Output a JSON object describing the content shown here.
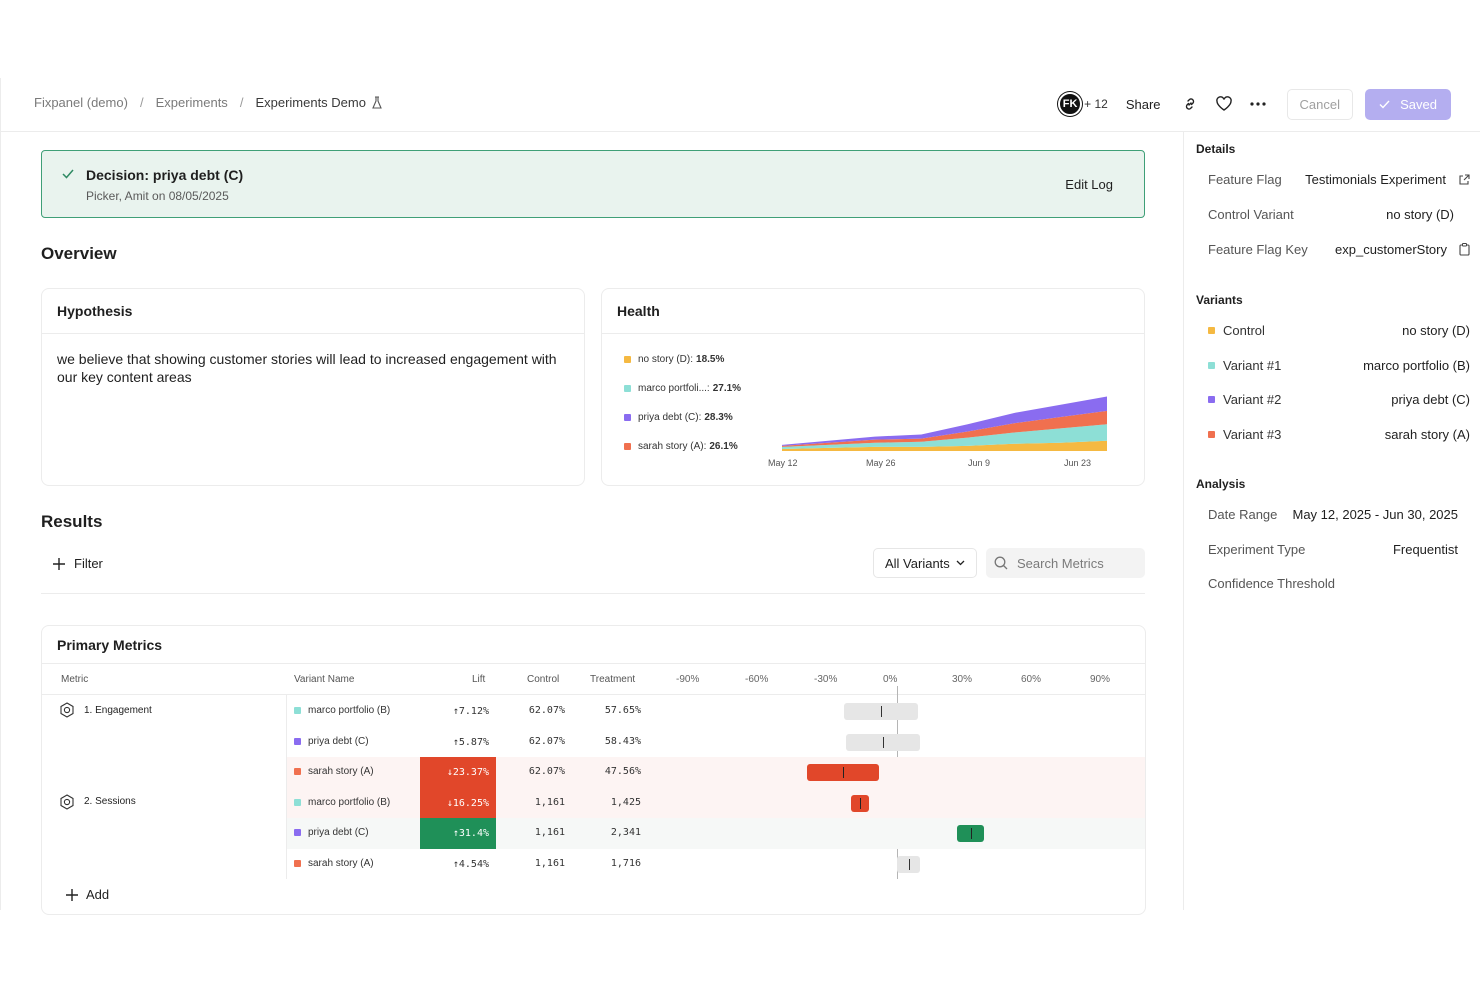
{
  "breadcrumb": {
    "items": [
      "Fixpanel (demo)",
      "Experiments"
    ],
    "current": "Experiments Demo",
    "separator": "/"
  },
  "header": {
    "avatar_initials": "FK",
    "avatar_extra": "+ 12",
    "share_label": "Share",
    "cancel_label": "Cancel",
    "saved_label": "Saved"
  },
  "decision": {
    "title": "Decision: priya debt (C)",
    "subtitle": "Picker, Amit on 08/05/2025",
    "edit_label": "Edit Log"
  },
  "overview": {
    "title": "Overview",
    "hypothesis_title": "Hypothesis",
    "hypothesis_text": "we believe that showing customer stories will lead to increased engagement with our key content areas",
    "health_title": "Health"
  },
  "health_legend": [
    {
      "name": "no story (D):",
      "value": "18.5%",
      "color": "#f5b942"
    },
    {
      "name": "marco portfoli...:",
      "value": "27.1%",
      "color": "#8ddfd6"
    },
    {
      "name": "priya debt (C):",
      "value": "28.3%",
      "color": "#8a6cf0"
    },
    {
      "name": "sarah story (A):",
      "value": "26.1%",
      "color": "#f0704f"
    }
  ],
  "chart_data": {
    "type": "area",
    "x": [
      "May 12",
      "May 19",
      "May 26",
      "Jun 2",
      "Jun 9",
      "Jun 16",
      "Jun 23",
      "Jun 30"
    ],
    "x_ticks": [
      "May 12",
      "May 26",
      "Jun 9",
      "Jun 23"
    ],
    "series": [
      {
        "name": "no story (D)",
        "color": "#f5b942",
        "values": [
          2,
          3,
          4,
          4,
          5,
          7,
          8,
          10
        ]
      },
      {
        "name": "marco portfoli...",
        "color": "#8ddfd6",
        "values": [
          2,
          3,
          4,
          5,
          8,
          11,
          14,
          16
        ]
      },
      {
        "name": "sarah story (A)",
        "color": "#f0704f",
        "values": [
          1,
          2,
          3,
          3,
          6,
          9,
          11,
          13
        ]
      },
      {
        "name": "priya debt (C)",
        "color": "#8a6cf0",
        "values": [
          1,
          2,
          3,
          4,
          7,
          10,
          12,
          14
        ]
      }
    ],
    "ylim": [
      0,
      70
    ],
    "grid": false,
    "legend": "left"
  },
  "results": {
    "title": "Results",
    "filter_label": "Filter",
    "variants_select": "All Variants",
    "search_placeholder": "Search Metrics",
    "primary_metrics_title": "Primary Metrics",
    "add_label": "Add"
  },
  "table": {
    "headers": {
      "metric": "Metric",
      "variant": "Variant Name",
      "lift": "Lift",
      "control": "Control",
      "treatment": "Treatment"
    },
    "scale": [
      "-90%",
      "-60%",
      "-30%",
      "0%",
      "30%",
      "60%",
      "90%"
    ],
    "metrics": [
      {
        "name": "1. Engagement"
      },
      {
        "name": "2. Sessions"
      }
    ],
    "rows": [
      {
        "variant": "marco portfolio (B)",
        "color": "#8ddfd6",
        "lift": "↑7.12%",
        "lift_value": 7.12,
        "control": "62.07%",
        "treatment": "57.65%",
        "ci": [
          -23,
          9
        ],
        "status": "none"
      },
      {
        "variant": "priya debt (C)",
        "color": "#8a6cf0",
        "lift": "↑5.87%",
        "lift_value": 5.87,
        "control": "62.07%",
        "treatment": "58.43%",
        "ci": [
          -22,
          10
        ],
        "status": "none"
      },
      {
        "variant": "sarah story (A)",
        "color": "#f0704f",
        "lift": "↓23.37%",
        "lift_value": -23.37,
        "control": "62.07%",
        "treatment": "47.56%",
        "ci": [
          -39,
          -8
        ],
        "status": "neg"
      },
      {
        "variant": "marco portfolio (B)",
        "color": "#8ddfd6",
        "lift": "↓16.25%",
        "lift_value": -16.25,
        "control": "1,161",
        "treatment": "1,425",
        "ci": [
          -20,
          -12
        ],
        "status": "neg"
      },
      {
        "variant": "priya debt (C)",
        "color": "#8a6cf0",
        "lift": "↑31.4%",
        "lift_value": 31.4,
        "control": "1,161",
        "treatment": "2,341",
        "ci": [
          26,
          38
        ],
        "status": "pos"
      },
      {
        "variant": "sarah story (A)",
        "color": "#f0704f",
        "lift": "↑4.54%",
        "lift_value": 4.54,
        "control": "1,161",
        "treatment": "1,716",
        "ci": [
          0,
          10
        ],
        "status": "none"
      }
    ]
  },
  "sidebar": {
    "details_title": "Details",
    "details": [
      {
        "key": "Feature Flag",
        "value": "Testimonials Experiment",
        "icon": "external-link-icon"
      },
      {
        "key": "Control Variant",
        "value": "no story (D)"
      },
      {
        "key": "Feature Flag Key",
        "value": "exp_customerStory",
        "icon": "copy-icon"
      }
    ],
    "variants_title": "Variants",
    "variants": [
      {
        "key": "Control",
        "value": "no story (D)",
        "color": "#f5b942"
      },
      {
        "key": "Variant #1",
        "value": "marco portfolio (B)",
        "color": "#8ddfd6"
      },
      {
        "key": "Variant #2",
        "value": "priya debt (C)",
        "color": "#8a6cf0"
      },
      {
        "key": "Variant #3",
        "value": "sarah story (A)",
        "color": "#f0704f"
      }
    ],
    "analysis_title": "Analysis",
    "analysis": [
      {
        "key": "Date Range",
        "value": "May 12, 2025 - Jun 30, 2025"
      },
      {
        "key": "Experiment Type",
        "value": "Frequentist"
      },
      {
        "key": "Confidence Threshold",
        "value": ""
      }
    ]
  }
}
